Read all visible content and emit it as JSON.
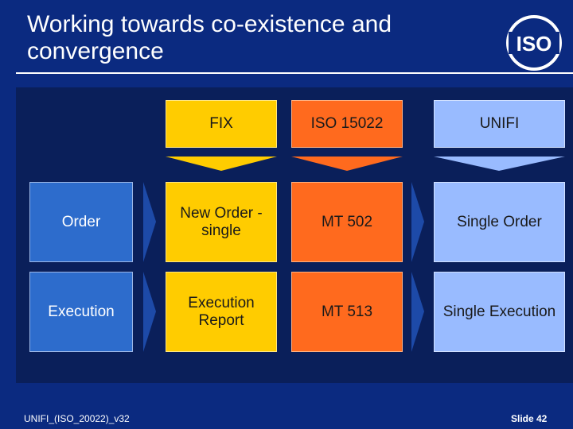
{
  "slide": {
    "title": "Working towards co-existence and convergence",
    "logo_text": "ISO",
    "footer_left": "UNIFI_(ISO_20022)_v32",
    "footer_right": "Slide 42"
  },
  "columns": {
    "fix": "FIX",
    "iso": "ISO 15022",
    "unifi": "UNIFI"
  },
  "rows": [
    {
      "label": "Order",
      "fix": "New Order - single",
      "iso": "MT 502",
      "unifi": "Single Order"
    },
    {
      "label": "Execution",
      "fix": "Execution Report",
      "iso": "MT 513",
      "unifi": "Single Execution"
    }
  ],
  "colors": {
    "background": "#0b2a80",
    "label_blue": "#2d6ccc",
    "fix_yellow": "#ffcc00",
    "iso_orange": "#ff6a1e",
    "unifi_lightblue": "#99bbff"
  }
}
